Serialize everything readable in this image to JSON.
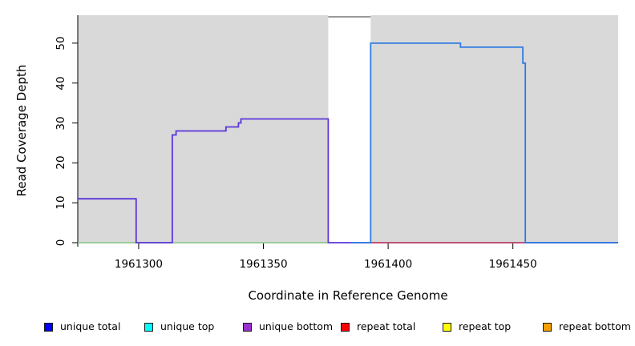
{
  "chart_data": {
    "type": "line",
    "subtype": "step-coverage",
    "title": "",
    "xlabel": "Coordinate in Reference Genome",
    "ylabel": "Read Coverage Depth",
    "xlim": [
      1961275.6,
      1961492.2
    ],
    "ylim": [
      -0.2,
      57.0
    ],
    "grid": "off",
    "panel_background": "#d9d9d9",
    "masked_region": {
      "x_start": 1961376,
      "x_end": 1961393,
      "color": "#ffffff",
      "clipped_top_value": 56.6,
      "clipped_top_color": "#8c8c8c"
    },
    "x_ticks": [
      {
        "value": 1961300,
        "label": "1961300"
      },
      {
        "value": 1961350,
        "label": "1961350"
      },
      {
        "value": 1961400,
        "label": "1961400"
      },
      {
        "value": 1961450,
        "label": "1961450"
      }
    ],
    "y_ticks": [
      {
        "value": 0,
        "label": "0"
      },
      {
        "value": 10,
        "label": "10"
      },
      {
        "value": 20,
        "label": "20"
      },
      {
        "value": 30,
        "label": "30"
      },
      {
        "value": 40,
        "label": "40"
      },
      {
        "value": 50,
        "label": "50"
      }
    ],
    "series": [
      {
        "name": "zero-depth-left-green",
        "color": "#84c784",
        "width": 1.5,
        "points": [
          [
            1961275.6,
            0
          ],
          [
            1961376,
            0
          ]
        ]
      },
      {
        "name": "unique-bottom",
        "color": "#5c35d8",
        "width": 1.8,
        "points": [
          [
            1961275.6,
            11
          ],
          [
            1961299,
            11
          ],
          [
            1961299,
            0
          ],
          [
            1961313.5,
            0
          ],
          [
            1961313.5,
            27
          ],
          [
            1961315,
            27
          ],
          [
            1961315,
            28
          ],
          [
            1961335,
            28
          ],
          [
            1961335,
            29
          ],
          [
            1961340,
            29
          ],
          [
            1961340,
            30
          ],
          [
            1961341,
            30
          ],
          [
            1961341,
            31
          ],
          [
            1961376,
            31
          ],
          [
            1961376,
            0
          ],
          [
            1961492.2,
            0
          ]
        ]
      },
      {
        "name": "repeat-total-zero",
        "color": "#d34f57",
        "width": 1.5,
        "points": [
          [
            1961393,
            0
          ],
          [
            1961455,
            0
          ]
        ]
      },
      {
        "name": "unique-total",
        "color": "#2f7de1",
        "width": 1.8,
        "points": [
          [
            1961385,
            0
          ],
          [
            1961393,
            0
          ],
          [
            1961393,
            50
          ],
          [
            1961429,
            50
          ],
          [
            1961429,
            49
          ],
          [
            1961454,
            49
          ],
          [
            1961454,
            45
          ],
          [
            1961455,
            45
          ],
          [
            1961455,
            0
          ],
          [
            1961492.2,
            0
          ]
        ]
      },
      {
        "name": "clipped-coverage-top",
        "color": "#8c8c8c",
        "width": 1.8,
        "points": [
          [
            1961376,
            56.6
          ],
          [
            1961393,
            56.6
          ]
        ]
      }
    ]
  },
  "legend": {
    "items": [
      {
        "label": "unique total",
        "color": "#0000ff"
      },
      {
        "label": "unique top",
        "color": "#00ffff"
      },
      {
        "label": "unique bottom",
        "color": "#9932cc"
      },
      {
        "label": "repeat total",
        "color": "#ff0000"
      },
      {
        "label": "repeat top",
        "color": "#ffff00"
      },
      {
        "label": "repeat bottom",
        "color": "#f5a000"
      }
    ],
    "item_positions": [
      55,
      180,
      303,
      425,
      552,
      677
    ]
  }
}
